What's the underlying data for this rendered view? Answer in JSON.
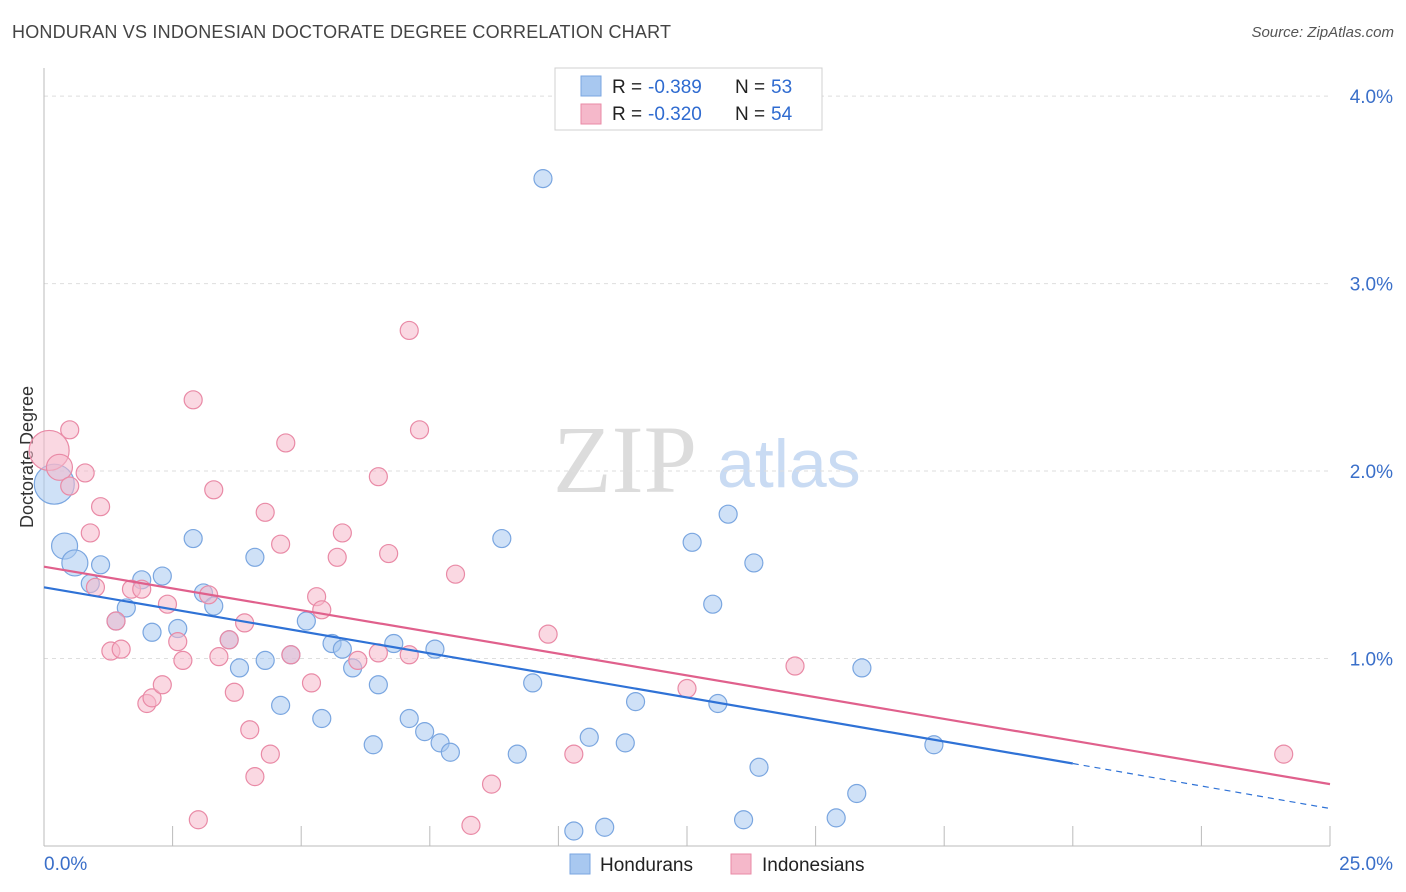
{
  "title": "HONDURAN VS INDONESIAN DOCTORATE DEGREE CORRELATION CHART",
  "source": "Source: ZipAtlas.com",
  "watermark": {
    "zip": "ZIP",
    "atlas": "atlas"
  },
  "chart_data": {
    "type": "scatter",
    "title": "HONDURAN VS INDONESIAN DOCTORATE DEGREE CORRELATION CHART",
    "xlabel": "",
    "ylabel": "Doctorate Degree",
    "xlim": [
      0,
      25
    ],
    "ylim": [
      0,
      4.15
    ],
    "x_tick_labels": [
      {
        "value": 0,
        "label": "0.0%"
      },
      {
        "value": 25,
        "label": "25.0%"
      }
    ],
    "y_ticks": [
      {
        "value": 1,
        "label": "1.0%"
      },
      {
        "value": 2,
        "label": "2.0%"
      },
      {
        "value": 3,
        "label": "3.0%"
      },
      {
        "value": 4,
        "label": "4.0%"
      }
    ],
    "grid": true,
    "legend": {
      "position": "bottom-center",
      "entries": [
        {
          "name": "Hondurans",
          "color": "#a8c8f0"
        },
        {
          "name": "Indonesians",
          "color": "#f5b8ca"
        }
      ]
    },
    "stats_box": {
      "position": "top-center",
      "rows": [
        {
          "series": "Hondurans",
          "r_label": "R =",
          "r": "-0.389",
          "n_label": "N =",
          "n": "53"
        },
        {
          "series": "Indonesians",
          "r_label": "R =",
          "r": "-0.320",
          "n_label": "N =",
          "n": "54"
        }
      ]
    },
    "series": [
      {
        "name": "Hondurans",
        "fill": "#a8c8f0",
        "stroke": "#7aa6e0",
        "line_color": "#2f72d6",
        "trend": {
          "x0": 0,
          "y0": 1.38,
          "x1": 20,
          "y1": 0.44,
          "x_dash_end": 25,
          "y_dash_end": 0.2
        },
        "points": [
          {
            "x": 0.2,
            "y": 1.93,
            "size": "large"
          },
          {
            "x": 0.4,
            "y": 1.6,
            "size": "medium"
          },
          {
            "x": 0.6,
            "y": 1.51,
            "size": "medium"
          },
          {
            "x": 0.9,
            "y": 1.4
          },
          {
            "x": 1.1,
            "y": 1.5
          },
          {
            "x": 1.4,
            "y": 1.2
          },
          {
            "x": 1.6,
            "y": 1.27
          },
          {
            "x": 1.9,
            "y": 1.42
          },
          {
            "x": 2.1,
            "y": 1.14
          },
          {
            "x": 2.3,
            "y": 1.44
          },
          {
            "x": 2.6,
            "y": 1.16
          },
          {
            "x": 2.9,
            "y": 1.64
          },
          {
            "x": 3.1,
            "y": 1.35
          },
          {
            "x": 3.3,
            "y": 1.28
          },
          {
            "x": 3.6,
            "y": 1.1
          },
          {
            "x": 3.8,
            "y": 0.95
          },
          {
            "x": 4.1,
            "y": 1.54
          },
          {
            "x": 4.3,
            "y": 0.99
          },
          {
            "x": 4.6,
            "y": 0.75
          },
          {
            "x": 4.8,
            "y": 1.02
          },
          {
            "x": 5.1,
            "y": 1.2
          },
          {
            "x": 5.4,
            "y": 0.68
          },
          {
            "x": 5.6,
            "y": 1.08
          },
          {
            "x": 5.8,
            "y": 1.05
          },
          {
            "x": 6.0,
            "y": 0.95
          },
          {
            "x": 6.4,
            "y": 0.54
          },
          {
            "x": 6.5,
            "y": 0.86
          },
          {
            "x": 6.8,
            "y": 1.08
          },
          {
            "x": 7.1,
            "y": 0.68
          },
          {
            "x": 7.4,
            "y": 0.61
          },
          {
            "x": 7.6,
            "y": 1.05
          },
          {
            "x": 7.7,
            "y": 0.55
          },
          {
            "x": 7.9,
            "y": 0.5
          },
          {
            "x": 8.9,
            "y": 1.64
          },
          {
            "x": 9.2,
            "y": 0.49
          },
          {
            "x": 9.5,
            "y": 0.87
          },
          {
            "x": 9.7,
            "y": 3.56
          },
          {
            "x": 10.3,
            "y": 0.08
          },
          {
            "x": 10.6,
            "y": 0.58
          },
          {
            "x": 10.9,
            "y": 0.1
          },
          {
            "x": 11.3,
            "y": 0.55
          },
          {
            "x": 11.5,
            "y": 0.77
          },
          {
            "x": 12.6,
            "y": 1.62
          },
          {
            "x": 13.0,
            "y": 1.29
          },
          {
            "x": 13.1,
            "y": 0.76
          },
          {
            "x": 13.3,
            "y": 1.77
          },
          {
            "x": 13.6,
            "y": 0.14
          },
          {
            "x": 13.8,
            "y": 1.51
          },
          {
            "x": 13.9,
            "y": 0.42
          },
          {
            "x": 15.8,
            "y": 0.28
          },
          {
            "x": 15.9,
            "y": 0.95
          },
          {
            "x": 15.4,
            "y": 0.15
          },
          {
            "x": 17.3,
            "y": 0.54
          }
        ]
      },
      {
        "name": "Indonesians",
        "fill": "#f5b8ca",
        "stroke": "#e98aa6",
        "line_color": "#e0608c",
        "trend": {
          "x0": 0,
          "y0": 1.49,
          "x1": 25,
          "y1": 0.33
        },
        "points": [
          {
            "x": 0.1,
            "y": 2.11,
            "size": "large"
          },
          {
            "x": 0.3,
            "y": 2.02,
            "size": "medium"
          },
          {
            "x": 0.5,
            "y": 2.22
          },
          {
            "x": 0.5,
            "y": 1.92
          },
          {
            "x": 0.8,
            "y": 1.99
          },
          {
            "x": 0.9,
            "y": 1.67
          },
          {
            "x": 1.0,
            "y": 1.38
          },
          {
            "x": 1.1,
            "y": 1.81
          },
          {
            "x": 1.3,
            "y": 1.04
          },
          {
            "x": 1.4,
            "y": 1.2
          },
          {
            "x": 1.5,
            "y": 1.05
          },
          {
            "x": 1.7,
            "y": 1.37
          },
          {
            "x": 1.9,
            "y": 1.37
          },
          {
            "x": 2.0,
            "y": 0.76
          },
          {
            "x": 2.1,
            "y": 0.79
          },
          {
            "x": 2.3,
            "y": 0.86
          },
          {
            "x": 2.4,
            "y": 1.29
          },
          {
            "x": 2.6,
            "y": 1.09
          },
          {
            "x": 2.7,
            "y": 0.99
          },
          {
            "x": 2.9,
            "y": 2.38
          },
          {
            "x": 3.0,
            "y": 0.14
          },
          {
            "x": 3.2,
            "y": 1.34
          },
          {
            "x": 3.3,
            "y": 1.9
          },
          {
            "x": 3.4,
            "y": 1.01
          },
          {
            "x": 3.6,
            "y": 1.1
          },
          {
            "x": 3.7,
            "y": 0.82
          },
          {
            "x": 3.9,
            "y": 1.19
          },
          {
            "x": 4.0,
            "y": 0.62
          },
          {
            "x": 4.1,
            "y": 0.37
          },
          {
            "x": 4.3,
            "y": 1.78
          },
          {
            "x": 4.4,
            "y": 0.49
          },
          {
            "x": 4.6,
            "y": 1.61
          },
          {
            "x": 4.7,
            "y": 2.15
          },
          {
            "x": 4.8,
            "y": 1.02
          },
          {
            "x": 5.2,
            "y": 0.87
          },
          {
            "x": 5.3,
            "y": 1.33
          },
          {
            "x": 5.4,
            "y": 1.26
          },
          {
            "x": 5.7,
            "y": 1.54
          },
          {
            "x": 5.8,
            "y": 1.67
          },
          {
            "x": 6.1,
            "y": 0.99
          },
          {
            "x": 6.5,
            "y": 1.03
          },
          {
            "x": 6.5,
            "y": 1.97
          },
          {
            "x": 6.7,
            "y": 1.56
          },
          {
            "x": 7.1,
            "y": 1.02
          },
          {
            "x": 7.1,
            "y": 2.75
          },
          {
            "x": 7.3,
            "y": 2.22
          },
          {
            "x": 8.0,
            "y": 1.45
          },
          {
            "x": 8.3,
            "y": 0.11
          },
          {
            "x": 8.7,
            "y": 0.33
          },
          {
            "x": 9.8,
            "y": 1.13
          },
          {
            "x": 10.3,
            "y": 0.49
          },
          {
            "x": 12.5,
            "y": 0.84
          },
          {
            "x": 14.6,
            "y": 0.96
          },
          {
            "x": 24.1,
            "y": 0.49
          }
        ]
      }
    ]
  }
}
